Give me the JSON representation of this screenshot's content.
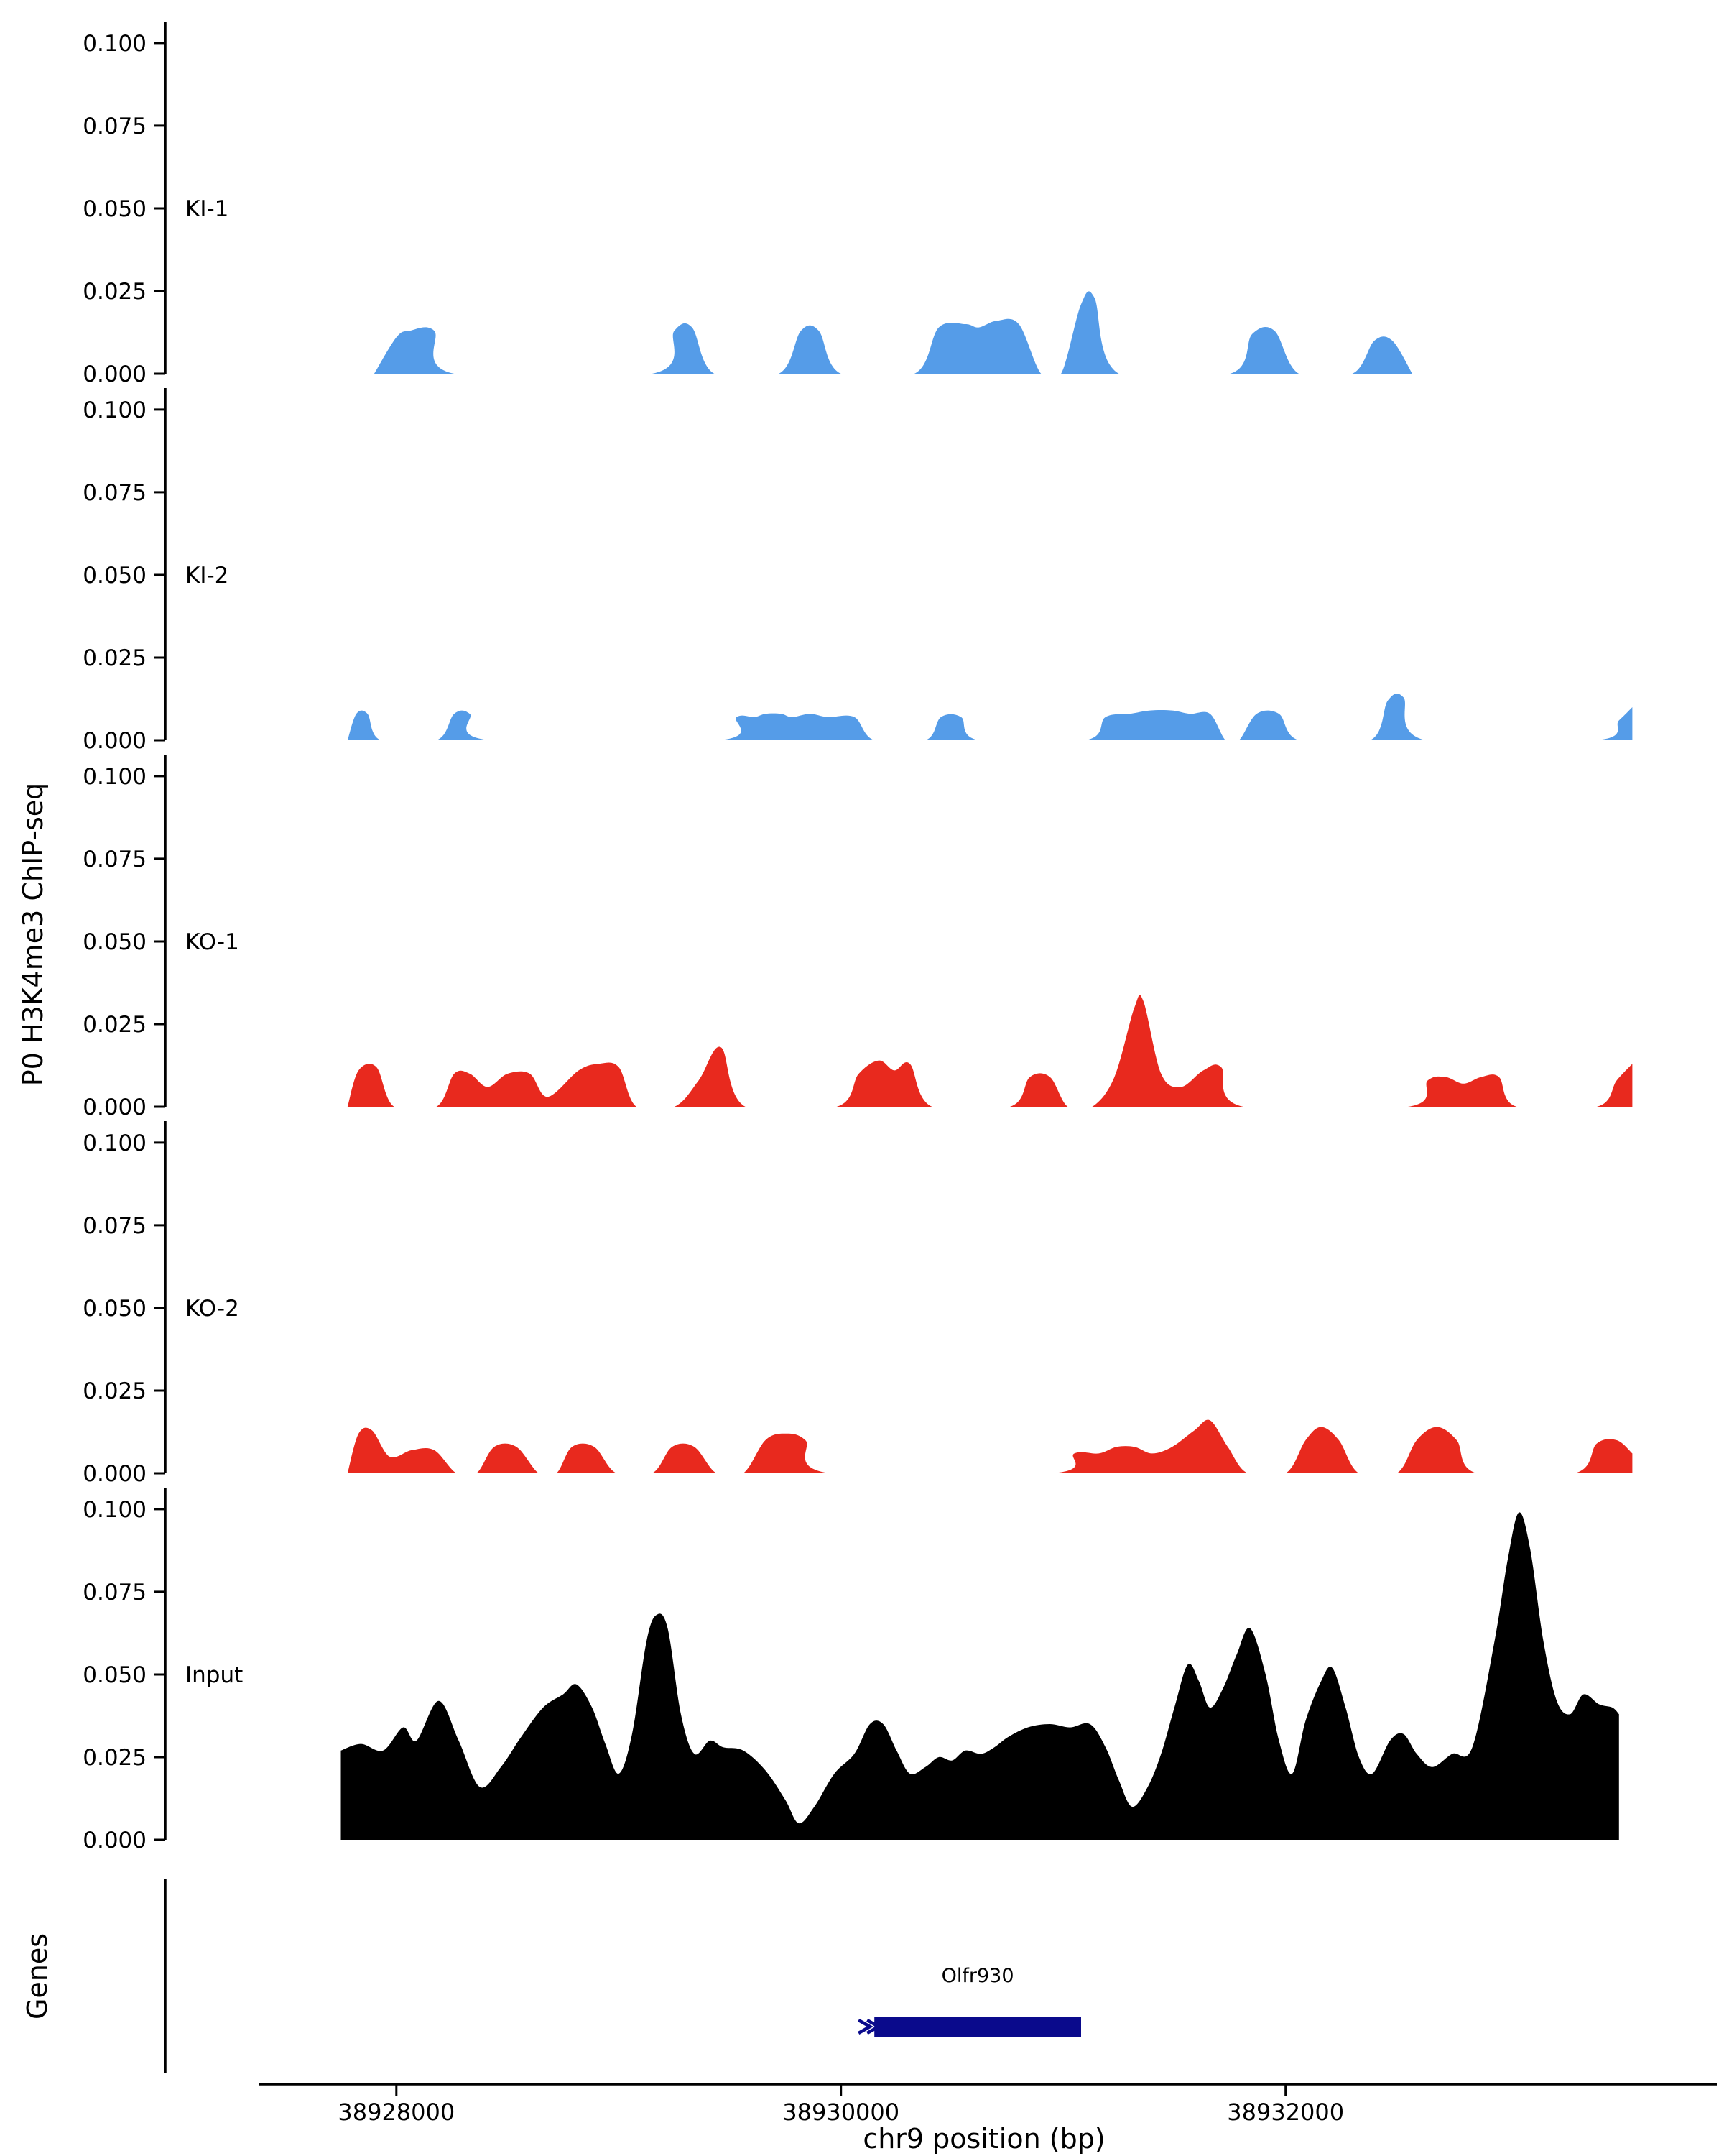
{
  "figure": {
    "y_axis_label": "P0 H3K4me3 ChIP-seq",
    "genes_label": "Genes",
    "x_axis_label": "chr9 position (bp)"
  },
  "chart_data": {
    "type": "area",
    "title": "",
    "x_domain": [
      38926960,
      38933940
    ],
    "x_ticks": [
      38928000,
      38930000,
      38932000
    ],
    "x_tick_labels": [
      "38928000",
      "38930000",
      "38932000"
    ],
    "y_ticks": [
      0,
      0.025,
      0.05,
      0.075,
      0.1
    ],
    "y_tick_labels": [
      "0.000",
      "0.025",
      "0.050",
      "0.075",
      "0.100"
    ],
    "ylim": [
      0,
      0.1065
    ],
    "colors": {
      "ki": "#559CE8",
      "ko": "#E8291E",
      "input": "#000000",
      "gene": "#0A0A8C"
    },
    "tracks": [
      {
        "name": "KI-1",
        "color": "#559CE8",
        "points": [
          [
            38927900,
            0
          ],
          [
            38928000,
            0.011
          ],
          [
            38928060,
            0.013
          ],
          [
            38928170,
            0.013
          ],
          [
            38928260,
            0
          ],
          [
            38929150,
            0
          ],
          [
            38929250,
            0.013
          ],
          [
            38929330,
            0.014
          ],
          [
            38929430,
            0
          ],
          [
            38929720,
            0
          ],
          [
            38929820,
            0.013
          ],
          [
            38929900,
            0.013
          ],
          [
            38930000,
            0
          ],
          [
            38930330,
            0
          ],
          [
            38930440,
            0.014
          ],
          [
            38930560,
            0.015
          ],
          [
            38930620,
            0.014
          ],
          [
            38930700,
            0.016
          ],
          [
            38930800,
            0.015
          ],
          [
            38930900,
            0
          ],
          [
            38930990,
            0
          ],
          [
            38931080,
            0.021
          ],
          [
            38931140,
            0.023
          ],
          [
            38931250,
            0
          ],
          [
            38931750,
            0
          ],
          [
            38931850,
            0.012
          ],
          [
            38931950,
            0.013
          ],
          [
            38932060,
            0
          ],
          [
            38932300,
            0
          ],
          [
            38932400,
            0.01
          ],
          [
            38932480,
            0.01
          ],
          [
            38932570,
            0
          ]
        ]
      },
      {
        "name": "KI-2",
        "color": "#559CE8",
        "points": [
          [
            38927780,
            0
          ],
          [
            38927820,
            0.008
          ],
          [
            38927870,
            0.008
          ],
          [
            38927930,
            0
          ],
          [
            38928180,
            0
          ],
          [
            38928260,
            0.008
          ],
          [
            38928330,
            0.008
          ],
          [
            38928420,
            0
          ],
          [
            38929450,
            0
          ],
          [
            38929530,
            0.007
          ],
          [
            38929610,
            0.007
          ],
          [
            38929660,
            0.008
          ],
          [
            38929730,
            0.008
          ],
          [
            38929780,
            0.007
          ],
          [
            38929860,
            0.008
          ],
          [
            38929940,
            0.007
          ],
          [
            38930060,
            0.007
          ],
          [
            38930150,
            0
          ],
          [
            38930380,
            0
          ],
          [
            38930450,
            0.007
          ],
          [
            38930540,
            0.007
          ],
          [
            38930620,
            0
          ],
          [
            38931100,
            0
          ],
          [
            38931190,
            0.007
          ],
          [
            38931300,
            0.008
          ],
          [
            38931390,
            0.009
          ],
          [
            38931490,
            0.009
          ],
          [
            38931570,
            0.008
          ],
          [
            38931660,
            0.008
          ],
          [
            38931730,
            0
          ],
          [
            38931790,
            0
          ],
          [
            38931870,
            0.008
          ],
          [
            38931970,
            0.008
          ],
          [
            38932060,
            0
          ],
          [
            38932380,
            0
          ],
          [
            38932460,
            0.012
          ],
          [
            38932530,
            0.013
          ],
          [
            38932630,
            0
          ],
          [
            38933400,
            0
          ],
          [
            38933500,
            0.006
          ],
          [
            38933560,
            0.01
          ]
        ]
      },
      {
        "name": "KO-1",
        "color": "#E8291E",
        "points": [
          [
            38927780,
            0
          ],
          [
            38927830,
            0.011
          ],
          [
            38927910,
            0.012
          ],
          [
            38927990,
            0
          ],
          [
            38928180,
            0
          ],
          [
            38928260,
            0.01
          ],
          [
            38928330,
            0.01
          ],
          [
            38928410,
            0.006
          ],
          [
            38928500,
            0.01
          ],
          [
            38928600,
            0.01
          ],
          [
            38928680,
            0.003
          ],
          [
            38928820,
            0.011
          ],
          [
            38928910,
            0.013
          ],
          [
            38929000,
            0.012
          ],
          [
            38929080,
            0
          ],
          [
            38929250,
            0
          ],
          [
            38929360,
            0.008
          ],
          [
            38929460,
            0.018
          ],
          [
            38929570,
            0
          ],
          [
            38929980,
            0
          ],
          [
            38930080,
            0.01
          ],
          [
            38930170,
            0.014
          ],
          [
            38930240,
            0.011
          ],
          [
            38930310,
            0.013
          ],
          [
            38930410,
            0
          ],
          [
            38930760,
            0
          ],
          [
            38930850,
            0.009
          ],
          [
            38930940,
            0.009
          ],
          [
            38931020,
            0
          ],
          [
            38931130,
            0
          ],
          [
            38931230,
            0.009
          ],
          [
            38931320,
            0.03
          ],
          [
            38931360,
            0.032
          ],
          [
            38931440,
            0.01
          ],
          [
            38931530,
            0.006
          ],
          [
            38931630,
            0.011
          ],
          [
            38931710,
            0.012
          ],
          [
            38931810,
            0
          ],
          [
            38932550,
            0
          ],
          [
            38932640,
            0.008
          ],
          [
            38932720,
            0.009
          ],
          [
            38932800,
            0.007
          ],
          [
            38932880,
            0.009
          ],
          [
            38932960,
            0.009
          ],
          [
            38933040,
            0
          ],
          [
            38933400,
            0
          ],
          [
            38933490,
            0.008
          ],
          [
            38933560,
            0.013
          ]
        ]
      },
      {
        "name": "KO-2",
        "color": "#E8291E",
        "points": [
          [
            38927780,
            0
          ],
          [
            38927830,
            0.012
          ],
          [
            38927890,
            0.013
          ],
          [
            38927970,
            0.005
          ],
          [
            38928070,
            0.007
          ],
          [
            38928170,
            0.007
          ],
          [
            38928270,
            0
          ],
          [
            38928360,
            0
          ],
          [
            38928440,
            0.008
          ],
          [
            38928540,
            0.008
          ],
          [
            38928640,
            0
          ],
          [
            38928720,
            0
          ],
          [
            38928790,
            0.008
          ],
          [
            38928890,
            0.008
          ],
          [
            38928990,
            0
          ],
          [
            38929150,
            0
          ],
          [
            38929240,
            0.008
          ],
          [
            38929340,
            0.008
          ],
          [
            38929440,
            0
          ],
          [
            38929560,
            0
          ],
          [
            38929660,
            0.01
          ],
          [
            38929750,
            0.012
          ],
          [
            38929840,
            0.01
          ],
          [
            38929950,
            0
          ],
          [
            38930950,
            0
          ],
          [
            38931050,
            0.006
          ],
          [
            38931160,
            0.006
          ],
          [
            38931240,
            0.008
          ],
          [
            38931320,
            0.008
          ],
          [
            38931400,
            0.006
          ],
          [
            38931490,
            0.008
          ],
          [
            38931590,
            0.013
          ],
          [
            38931660,
            0.016
          ],
          [
            38931740,
            0.008
          ],
          [
            38931830,
            0
          ],
          [
            38932000,
            0
          ],
          [
            38932090,
            0.01
          ],
          [
            38932160,
            0.014
          ],
          [
            38932240,
            0.01
          ],
          [
            38932330,
            0
          ],
          [
            38932500,
            0
          ],
          [
            38932590,
            0.01
          ],
          [
            38932680,
            0.014
          ],
          [
            38932770,
            0.01
          ],
          [
            38932860,
            0
          ],
          [
            38933300,
            0
          ],
          [
            38933400,
            0.009
          ],
          [
            38933490,
            0.01
          ],
          [
            38933560,
            0.006
          ]
        ]
      },
      {
        "name": "Input",
        "color": "#000000",
        "points": [
          [
            38927750,
            0.027
          ],
          [
            38927840,
            0.029
          ],
          [
            38927940,
            0.027
          ],
          [
            38928030,
            0.034
          ],
          [
            38928090,
            0.03
          ],
          [
            38928190,
            0.042
          ],
          [
            38928280,
            0.03
          ],
          [
            38928375,
            0.016
          ],
          [
            38928470,
            0.022
          ],
          [
            38928560,
            0.031
          ],
          [
            38928660,
            0.04
          ],
          [
            38928750,
            0.044
          ],
          [
            38928810,
            0.047
          ],
          [
            38928880,
            0.04
          ],
          [
            38928940,
            0.029
          ],
          [
            38929000,
            0.02
          ],
          [
            38929060,
            0.032
          ],
          [
            38929125,
            0.06
          ],
          [
            38929170,
            0.068
          ],
          [
            38929220,
            0.064
          ],
          [
            38929280,
            0.038
          ],
          [
            38929340,
            0.026
          ],
          [
            38929410,
            0.03
          ],
          [
            38929470,
            0.028
          ],
          [
            38929560,
            0.027
          ],
          [
            38929660,
            0.021
          ],
          [
            38929750,
            0.012
          ],
          [
            38929810,
            0.005
          ],
          [
            38929880,
            0.01
          ],
          [
            38929970,
            0.02
          ],
          [
            38930060,
            0.026
          ],
          [
            38930130,
            0.035
          ],
          [
            38930190,
            0.035
          ],
          [
            38930250,
            0.027
          ],
          [
            38930310,
            0.02
          ],
          [
            38930380,
            0.022
          ],
          [
            38930440,
            0.025
          ],
          [
            38930500,
            0.024
          ],
          [
            38930560,
            0.027
          ],
          [
            38930630,
            0.026
          ],
          [
            38930690,
            0.028
          ],
          [
            38930750,
            0.031
          ],
          [
            38930840,
            0.034
          ],
          [
            38930940,
            0.035
          ],
          [
            38931030,
            0.034
          ],
          [
            38931120,
            0.035
          ],
          [
            38931190,
            0.028
          ],
          [
            38931250,
            0.018
          ],
          [
            38931310,
            0.01
          ],
          [
            38931380,
            0.016
          ],
          [
            38931440,
            0.026
          ],
          [
            38931500,
            0.04
          ],
          [
            38931560,
            0.053
          ],
          [
            38931610,
            0.048
          ],
          [
            38931660,
            0.04
          ],
          [
            38931720,
            0.046
          ],
          [
            38931780,
            0.056
          ],
          [
            38931840,
            0.064
          ],
          [
            38931910,
            0.05
          ],
          [
            38931970,
            0.03
          ],
          [
            38932030,
            0.02
          ],
          [
            38932090,
            0.036
          ],
          [
            38932160,
            0.048
          ],
          [
            38932210,
            0.052
          ],
          [
            38932270,
            0.04
          ],
          [
            38932330,
            0.025
          ],
          [
            38932390,
            0.02
          ],
          [
            38932470,
            0.03
          ],
          [
            38932530,
            0.032
          ],
          [
            38932590,
            0.026
          ],
          [
            38932660,
            0.022
          ],
          [
            38932750,
            0.026
          ],
          [
            38932840,
            0.028
          ],
          [
            38932940,
            0.06
          ],
          [
            38933000,
            0.085
          ],
          [
            38933050,
            0.099
          ],
          [
            38933100,
            0.088
          ],
          [
            38933160,
            0.06
          ],
          [
            38933220,
            0.042
          ],
          [
            38933280,
            0.038
          ],
          [
            38933340,
            0.044
          ],
          [
            38933410,
            0.041
          ],
          [
            38933470,
            0.04
          ],
          [
            38933500,
            0.038
          ]
        ]
      }
    ],
    "gene": {
      "label": "Olfr930",
      "start": 38930150,
      "end": 38931080,
      "color": "#0A0A8C",
      "strand_chevron": "right"
    }
  }
}
